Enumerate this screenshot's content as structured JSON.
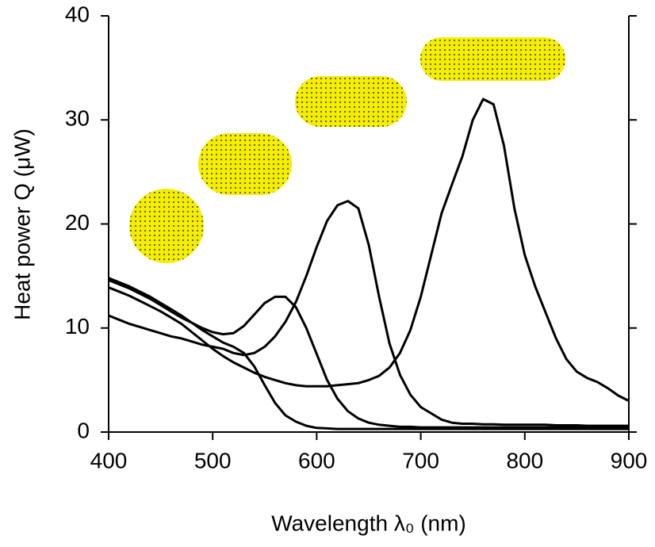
{
  "chart_data": {
    "type": "line",
    "xlabel": "Wavelength λ₀ (nm)",
    "ylabel": "Heat power Q (μW)",
    "xlim": [
      400,
      900
    ],
    "ylim": [
      0,
      40
    ],
    "xticks": [
      400,
      500,
      600,
      700,
      800,
      900
    ],
    "yticks": [
      0,
      10,
      20,
      30,
      40
    ],
    "x": [
      400,
      410,
      420,
      430,
      440,
      450,
      460,
      470,
      480,
      490,
      500,
      510,
      520,
      530,
      540,
      550,
      560,
      570,
      580,
      590,
      600,
      610,
      620,
      630,
      640,
      650,
      660,
      670,
      680,
      690,
      700,
      710,
      720,
      730,
      740,
      750,
      760,
      770,
      780,
      790,
      800,
      810,
      820,
      830,
      840,
      850,
      860,
      870,
      880,
      890,
      900
    ],
    "series": [
      {
        "color": "#000000",
        "values": [
          14.8,
          14.4,
          14.0,
          13.5,
          13.0,
          12.4,
          11.8,
          11.2,
          10.5,
          9.8,
          9.2,
          8.6,
          8.2,
          7.6,
          6.3,
          4.5,
          2.8,
          1.6,
          1.0,
          0.6,
          0.4,
          0.35,
          0.3,
          0.3,
          0.3,
          0.3,
          0.3,
          0.3,
          0.3,
          0.3,
          0.3,
          0.3,
          0.3,
          0.3,
          0.3,
          0.3,
          0.3,
          0.3,
          0.3,
          0.3,
          0.3,
          0.3,
          0.3,
          0.3,
          0.3,
          0.3,
          0.3,
          0.3,
          0.3,
          0.3,
          0.3
        ]
      },
      {
        "color": "#000000",
        "values": [
          14.6,
          14.2,
          13.8,
          13.3,
          12.8,
          12.2,
          11.6,
          11.0,
          10.5,
          10.0,
          9.6,
          9.4,
          9.5,
          10.2,
          11.3,
          12.4,
          13.0,
          13.0,
          12.0,
          10.0,
          7.5,
          5.0,
          3.2,
          2.0,
          1.3,
          0.9,
          0.7,
          0.6,
          0.5,
          0.5,
          0.45,
          0.45,
          0.45,
          0.45,
          0.45,
          0.45,
          0.45,
          0.45,
          0.45,
          0.45,
          0.45,
          0.45,
          0.45,
          0.45,
          0.45,
          0.45,
          0.45,
          0.45,
          0.45,
          0.45,
          0.45
        ]
      },
      {
        "color": "#000000",
        "values": [
          11.2,
          10.8,
          10.4,
          10.1,
          9.8,
          9.5,
          9.2,
          9.0,
          8.7,
          8.4,
          8.2,
          8.0,
          7.6,
          7.4,
          7.6,
          8.2,
          9.2,
          10.6,
          12.5,
          15.0,
          17.8,
          20.3,
          21.8,
          22.2,
          21.5,
          18.0,
          13.0,
          8.5,
          5.5,
          3.6,
          2.4,
          1.8,
          1.2,
          0.9,
          0.8,
          0.8,
          0.75,
          0.75,
          0.7,
          0.7,
          0.7,
          0.7,
          0.7,
          0.65,
          0.65,
          0.65,
          0.6,
          0.6,
          0.6,
          0.6,
          0.6
        ]
      },
      {
        "color": "#000000",
        "values": [
          13.9,
          13.5,
          13.1,
          12.6,
          12.1,
          11.6,
          11.0,
          10.4,
          9.6,
          8.8,
          8.0,
          7.3,
          6.7,
          6.2,
          5.7,
          5.3,
          5.0,
          4.7,
          4.5,
          4.4,
          4.4,
          4.4,
          4.5,
          4.6,
          4.7,
          5.0,
          5.4,
          6.2,
          7.6,
          9.8,
          13.0,
          17.0,
          21.0,
          23.8,
          26.5,
          30.0,
          32.0,
          31.5,
          27.5,
          21.5,
          17.0,
          14.0,
          11.5,
          9.0,
          7.0,
          5.8,
          5.2,
          4.8,
          4.2,
          3.5,
          3.0
        ]
      }
    ]
  }
}
